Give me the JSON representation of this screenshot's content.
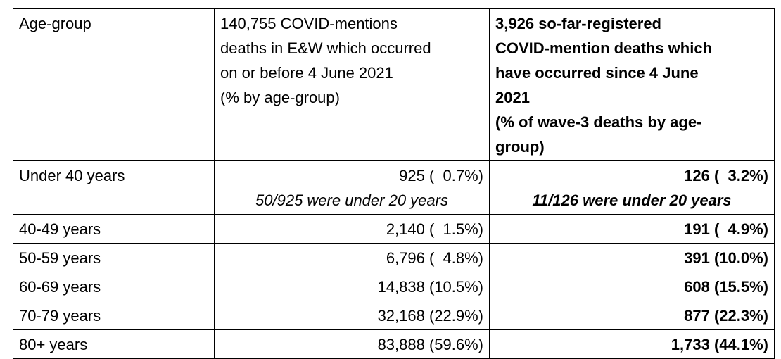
{
  "header": {
    "col1": "Age-group",
    "col2_lines": [
      "140,755 COVID-mentions",
      "deaths in E&W which occurred",
      "on or before 4 June 2021",
      "(% by age-group)"
    ],
    "col3_lines": [
      "3,926 so-far-registered",
      "COVID-mention deaths which",
      "have occurred since 4 June",
      "2021",
      "(% of wave-3 deaths by age-",
      "group)"
    ]
  },
  "rows": [
    {
      "age": "Under 40 years",
      "before": "925 (  0.7%)",
      "before_note": "50/925 were under 20 years",
      "since": "126 (  3.2%)",
      "since_note": "11/126 were under 20 years"
    },
    {
      "age": "40-49 years",
      "before": "2,140 (  1.5%)",
      "since": "191 (  4.9%)"
    },
    {
      "age": "50-59 years",
      "before": "6,796 (  4.8%)",
      "since": "391 (10.0%)"
    },
    {
      "age": "60-69 years",
      "before": "14,838 (10.5%)",
      "since": "608 (15.5%)"
    },
    {
      "age": "70-79 years",
      "before": "32,168 (22.9%)",
      "since": "877 (22.3%)"
    },
    {
      "age": "80+ years",
      "before": "83,888 (59.6%)",
      "since": "1,733 (44.1%)"
    }
  ]
}
